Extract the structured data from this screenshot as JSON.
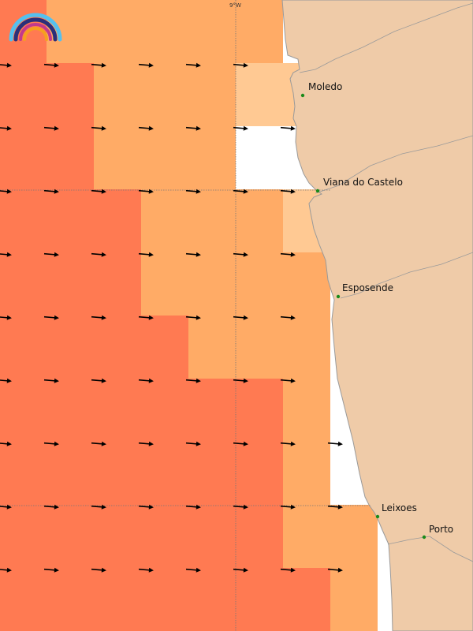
{
  "map": {
    "meridian_label": "9°W",
    "colors": {
      "land": "#efcba8",
      "coast": "#9a9a9a",
      "sea_unshaded": "#ffffff",
      "level_1": "#ffc993",
      "level_2": "#ffab66",
      "level_3": "#ff7a52",
      "arrow": "#000000",
      "city_dot": "#1a8a1a",
      "grid": "#777777"
    },
    "cities": [
      {
        "name": "Moledo"
      },
      {
        "name": "Viana do Castelo"
      },
      {
        "name": "Esposende"
      },
      {
        "name": "Leixoes"
      },
      {
        "name": "Porto"
      }
    ],
    "logo": {
      "icon": "rainbow-logo-icon"
    }
  }
}
